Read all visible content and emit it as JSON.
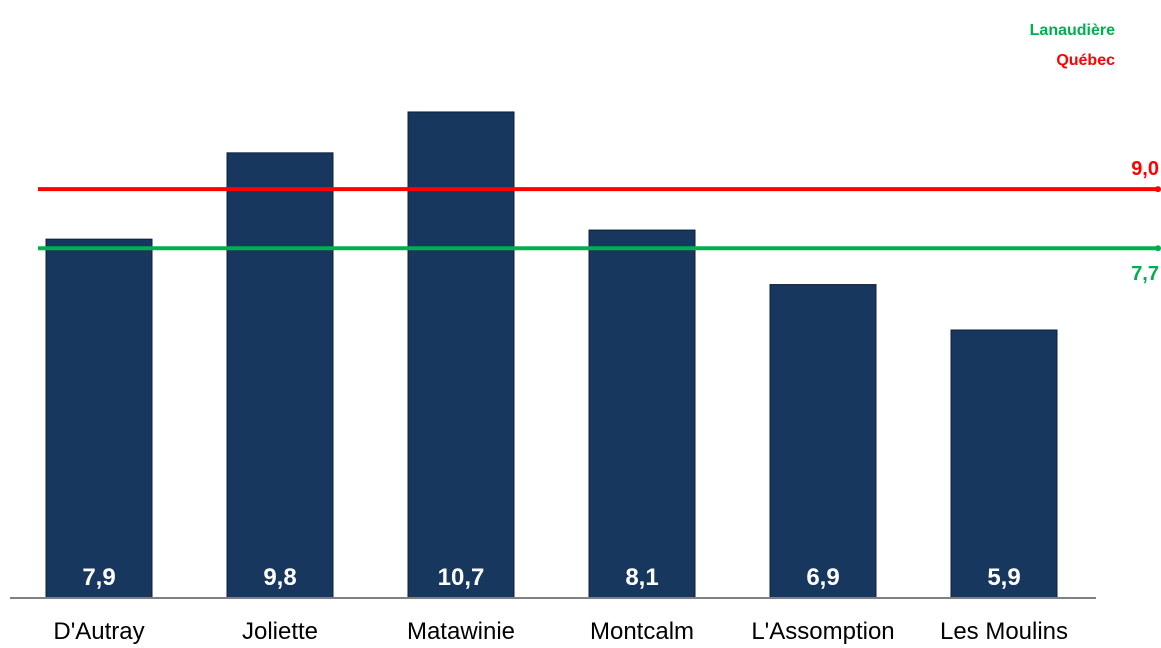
{
  "chart_data": {
    "type": "bar",
    "categories": [
      "D'Autray",
      "Joliette",
      "Matawinie",
      "Montcalm",
      "L'Assomption",
      "Les Moulins"
    ],
    "values": [
      7.9,
      9.8,
      10.7,
      8.1,
      6.9,
      5.9
    ],
    "value_labels": [
      "7,9",
      "9,8",
      "10,7",
      "8,1",
      "6,9",
      "5,9"
    ],
    "ylim": [
      0,
      11.8
    ],
    "bar_color": "#17375e",
    "grid": false,
    "legend_position": "top-right",
    "reference_lines": [
      {
        "name": "Québec",
        "value": 9.0,
        "label": "9,0",
        "color": "#ff0000"
      },
      {
        "name": "Lanaudière",
        "value": 7.7,
        "label": "7,7",
        "color": "#00b050"
      }
    ]
  },
  "legend": {
    "items": [
      {
        "label": "Lanaudière",
        "color": "#00b050"
      },
      {
        "label": "Québec",
        "color": "#ff0000"
      }
    ]
  }
}
